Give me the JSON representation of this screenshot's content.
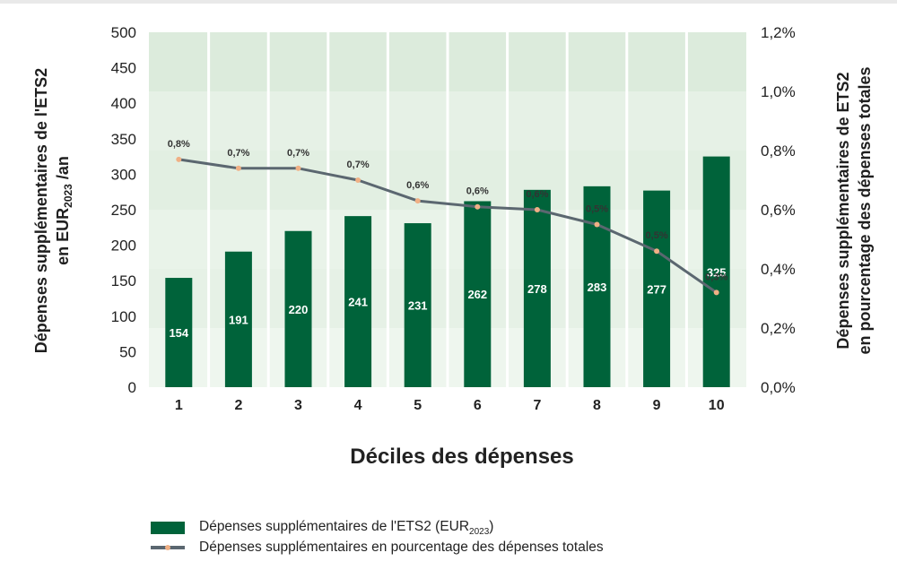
{
  "chart_data": {
    "type": "bar",
    "categories": [
      "1",
      "2",
      "3",
      "4",
      "5",
      "6",
      "7",
      "8",
      "9",
      "10"
    ],
    "series": [
      {
        "name": "Dépenses supplémentaires de l'ETS2 (EUR2023)",
        "type": "bar",
        "axis": "left",
        "values": [
          154,
          191,
          220,
          241,
          231,
          262,
          278,
          283,
          277,
          325
        ],
        "labels": [
          "154",
          "191",
          "220",
          "241",
          "231",
          "262",
          "278",
          "283",
          "277",
          "325"
        ],
        "color": "#00633a"
      },
      {
        "name": "Dépenses supplémentaires en pourcentage des dépenses totales",
        "type": "line",
        "axis": "right",
        "values": [
          0.77,
          0.74,
          0.74,
          0.7,
          0.63,
          0.61,
          0.6,
          0.55,
          0.46,
          0.32
        ],
        "labels": [
          "0,8%",
          "0,7%",
          "0,7%",
          "0,7%",
          "0,6%",
          "0,6%",
          "0,6%",
          "0,5%",
          "0,5%",
          "0,3%"
        ],
        "color": "#5b6770",
        "marker_color": "#f0b085"
      }
    ],
    "left_axis": {
      "label_line1": "Dépenses supplémentaires de l'ETS2",
      "label_line2_prefix": "en EUR",
      "label_line2_sub": "2023",
      "label_line2_suffix": " /an",
      "ylim": [
        0,
        500
      ],
      "ticks": [
        "0",
        "50",
        "100",
        "150",
        "200",
        "250",
        "300",
        "350",
        "400",
        "450",
        "500"
      ]
    },
    "right_axis": {
      "label_line1": "Dépenses supplémentaires de ETS2",
      "label_line2": "en pourcentage des dépenses totales",
      "ylim": [
        0,
        1.2
      ],
      "ticks": [
        "0,0%",
        "0,2%",
        "0,4%",
        "0,6%",
        "0,8%",
        "1,0%",
        "1,2%"
      ]
    },
    "xlabel": "Déciles des dépenses",
    "grid": true,
    "legend_position": "bottom-left"
  },
  "legend": {
    "bar_prefix": "Dépenses supplémentaires de l'ETS2 (EUR",
    "bar_sub": "2023",
    "bar_suffix": ")",
    "line_label": "Dépenses supplémentaires en pourcentage des dépenses totales"
  }
}
